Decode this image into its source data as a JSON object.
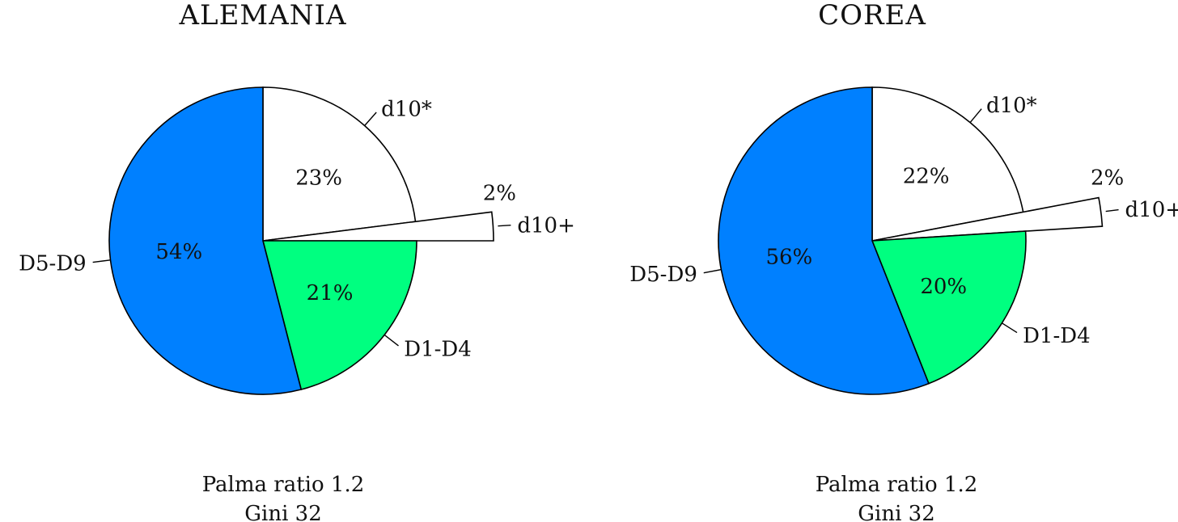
{
  "chart_data": [
    {
      "type": "pie",
      "title": "ALEMANIA",
      "slices": [
        {
          "label": "d10*",
          "value": 23,
          "value_label": "23%",
          "color": "#ffffff",
          "exploded": false
        },
        {
          "label": "d10+",
          "value": 2,
          "value_label": "2%",
          "color": "#ffffff",
          "exploded": true
        },
        {
          "label": "D1-D4",
          "value": 21,
          "value_label": "21%",
          "color": "#00ff80",
          "exploded": false
        },
        {
          "label": "D5-D9",
          "value": 54,
          "value_label": "54%",
          "color": "#0080ff",
          "exploded": false
        }
      ],
      "footer": [
        "Palma ratio 1.2",
        "Gini 32"
      ]
    },
    {
      "type": "pie",
      "title": "COREA",
      "slices": [
        {
          "label": "d10*",
          "value": 22,
          "value_label": "22%",
          "color": "#ffffff",
          "exploded": false
        },
        {
          "label": "d10+",
          "value": 2,
          "value_label": "2%",
          "color": "#ffffff",
          "exploded": true
        },
        {
          "label": "D1-D4",
          "value": 20,
          "value_label": "20%",
          "color": "#00ff80",
          "exploded": false
        },
        {
          "label": "D5-D9",
          "value": 56,
          "value_label": "56%",
          "color": "#0080ff",
          "exploded": false
        }
      ],
      "footer": [
        "Palma ratio 1.2",
        "Gini 32"
      ]
    }
  ]
}
